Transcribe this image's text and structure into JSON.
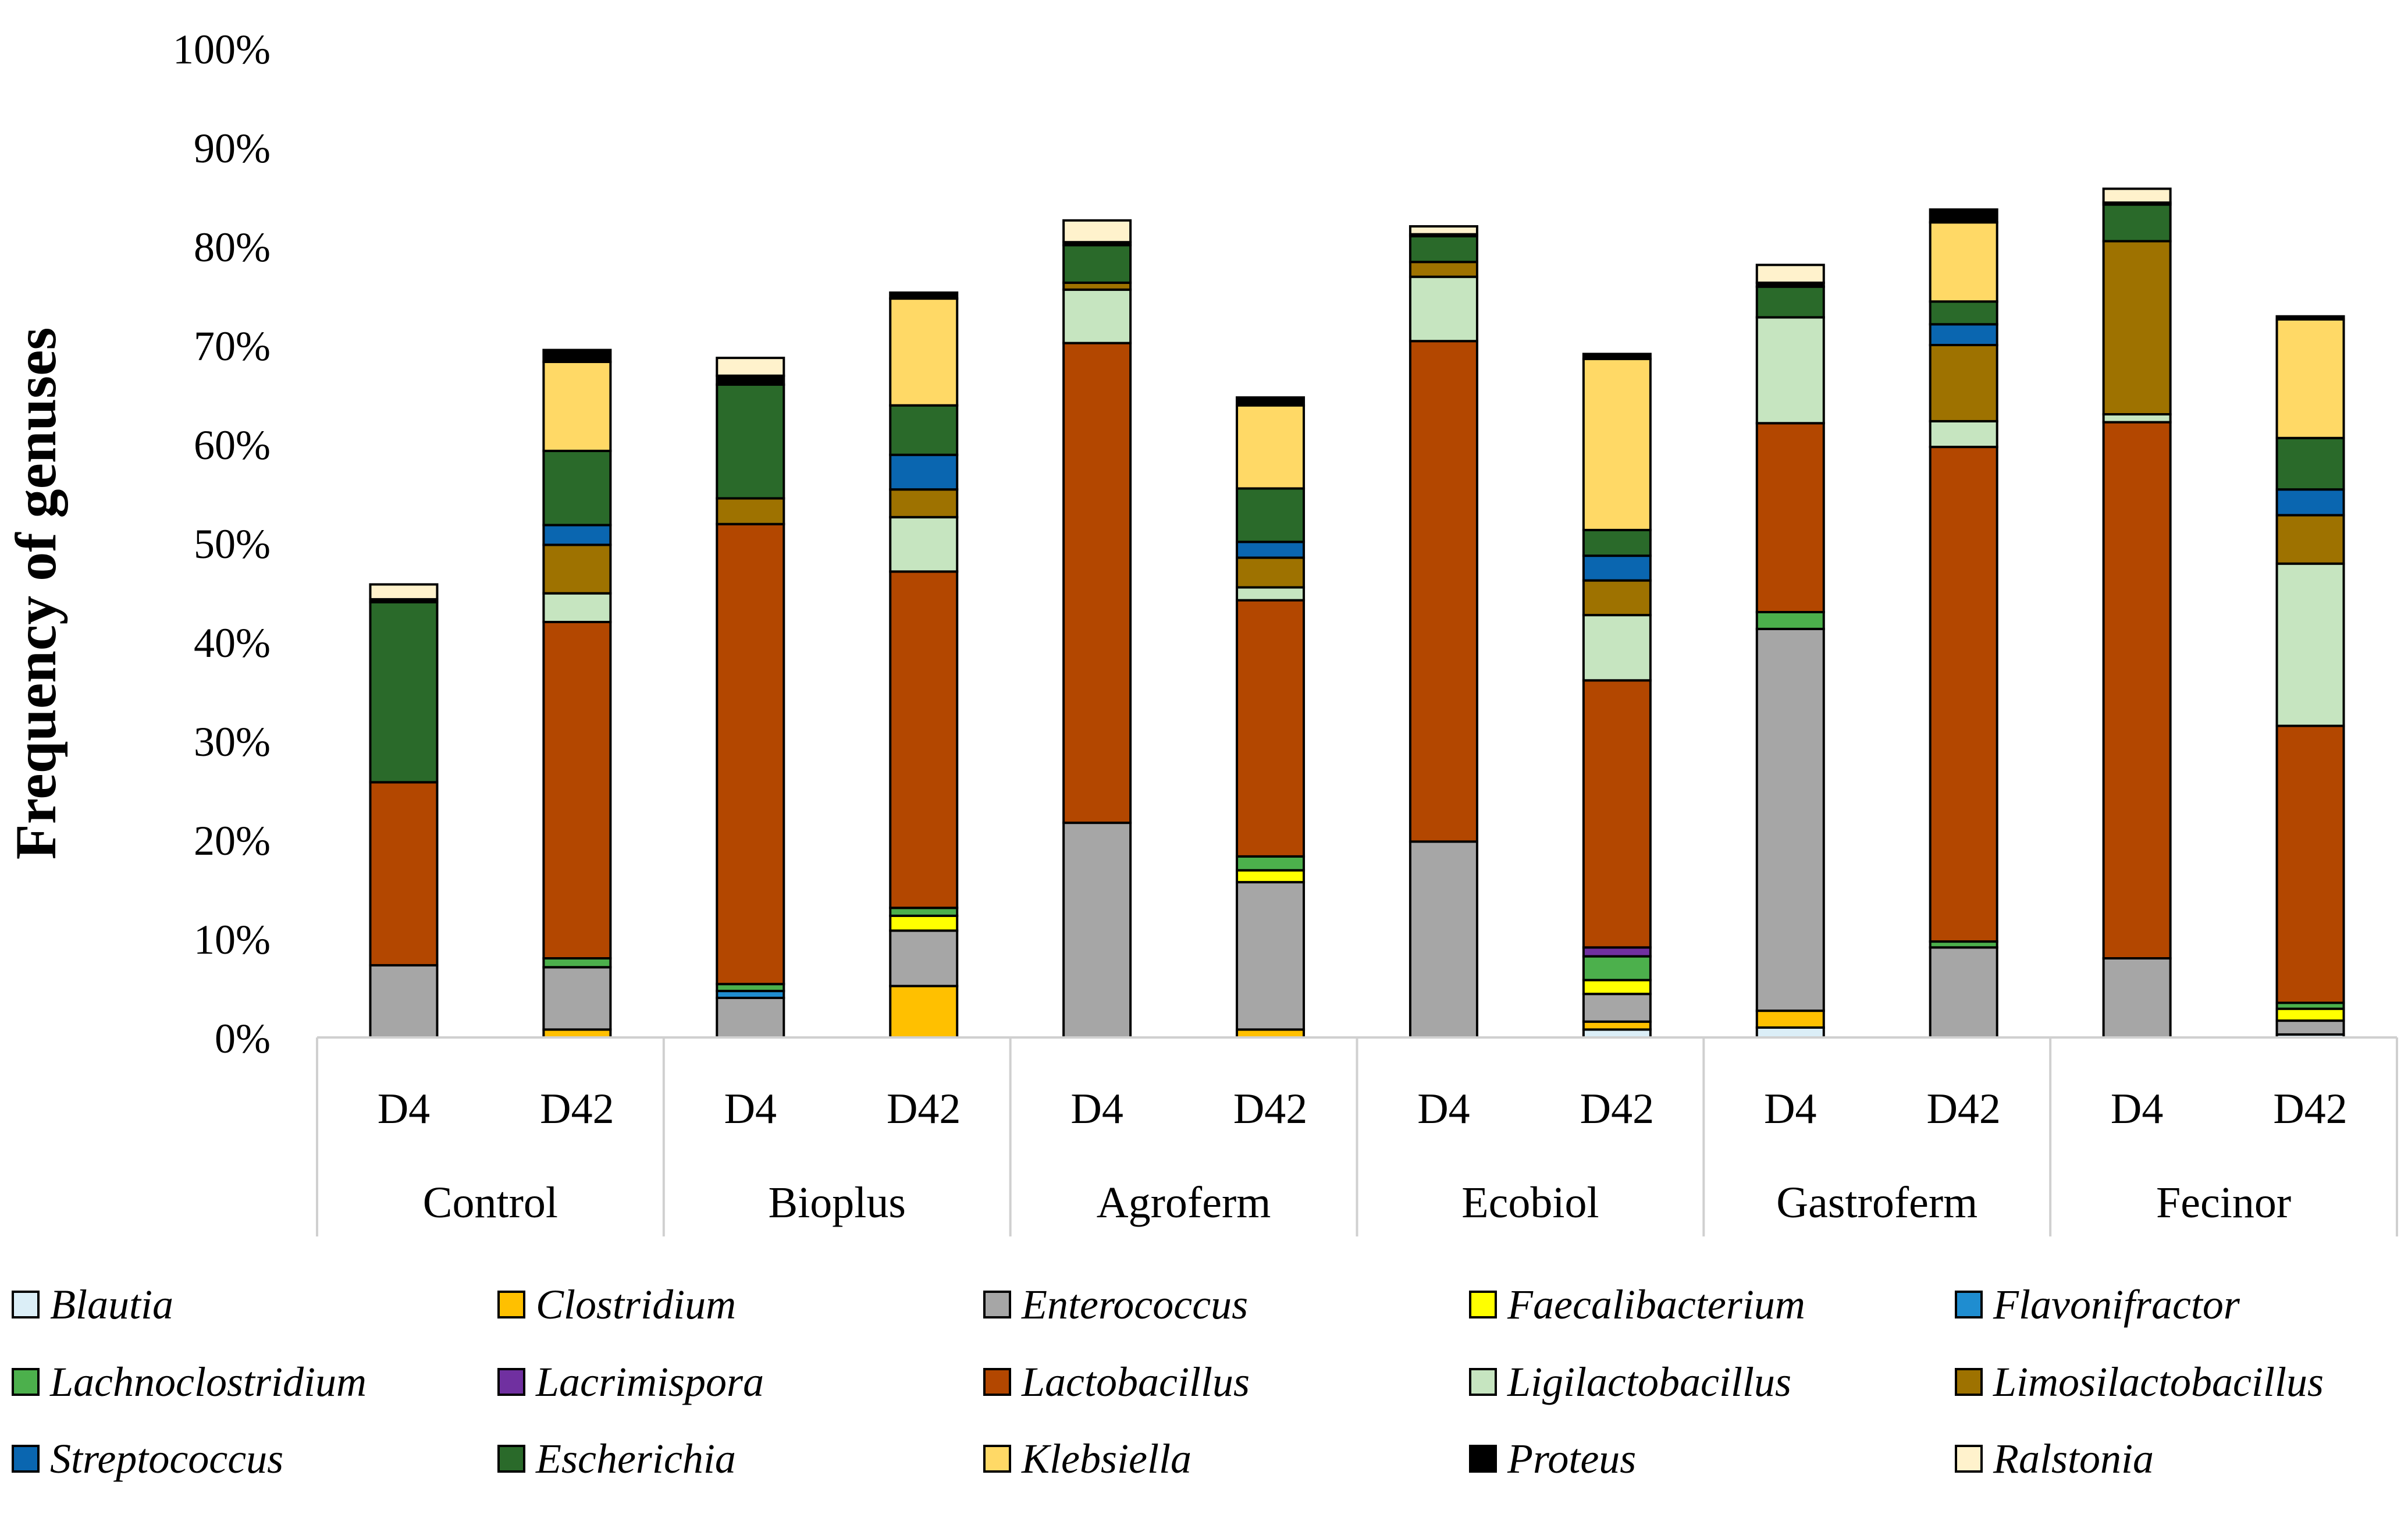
{
  "chart_data": {
    "type": "bar",
    "stacked": true,
    "ylabel": "Frequency of genuses",
    "ylim": [
      0,
      100
    ],
    "y_ticks": [
      "0%",
      "10%",
      "20%",
      "30%",
      "40%",
      "50%",
      "60%",
      "70%",
      "80%",
      "90%",
      "100%"
    ],
    "groups": [
      "Control",
      "Bioplus",
      "Agroferm",
      "Ecobiol",
      "Gastroferm",
      "Fecinor"
    ],
    "categories": [
      "D4",
      "D42",
      "D4",
      "D42",
      "D4",
      "D42",
      "D4",
      "D42",
      "D4",
      "D42",
      "D4",
      "D42"
    ],
    "series": [
      {
        "name": "Blautia",
        "color": "#dbeef7",
        "values": [
          0,
          0,
          0,
          0,
          0,
          0,
          0,
          0.8,
          1.0,
          0,
          0,
          0.3
        ]
      },
      {
        "name": "Clostridium",
        "color": "#ffc000",
        "values": [
          0,
          0.8,
          0,
          5.2,
          0,
          0.8,
          0,
          0.8,
          1.7,
          0,
          0,
          0
        ]
      },
      {
        "name": "Enterococcus",
        "color": "#a6a6a6",
        "values": [
          7.3,
          6.3,
          4.0,
          5.6,
          21.7,
          14.9,
          19.8,
          2.8,
          38.6,
          9.1,
          8.0,
          1.4
        ]
      },
      {
        "name": "Faecalibacterium",
        "color": "#ffff00",
        "values": [
          0,
          0,
          0,
          1.5,
          0,
          1.2,
          0,
          1.4,
          0,
          0,
          0,
          1.2
        ]
      },
      {
        "name": "Flavonifractor",
        "color": "#1f8dd0",
        "values": [
          0,
          0,
          0.7,
          0,
          0,
          0,
          0,
          0,
          0,
          0,
          0,
          0
        ]
      },
      {
        "name": "Lachnoclostridium",
        "color": "#4cb04c",
        "values": [
          0,
          0.9,
          0.7,
          0.8,
          0,
          1.4,
          0,
          2.4,
          1.7,
          0.6,
          0,
          0.6
        ]
      },
      {
        "name": "Lacrimispora",
        "color": "#7030a0",
        "values": [
          0,
          0,
          0,
          0,
          0,
          0,
          0,
          0.9,
          0,
          0,
          0,
          0
        ]
      },
      {
        "name": "Lactobacillus",
        "color": "#b34700",
        "values": [
          18.5,
          34.0,
          46.5,
          34.0,
          48.5,
          25.9,
          50.6,
          27.0,
          19.1,
          50.0,
          54.2,
          28.0
        ]
      },
      {
        "name": "Ligilactobacillus",
        "color": "#c6e5c0",
        "values": [
          0,
          2.9,
          0,
          5.5,
          5.4,
          1.3,
          6.5,
          6.6,
          10.7,
          2.6,
          0.8,
          16.4
        ]
      },
      {
        "name": "Limosilactobacillus",
        "color": "#9e7200",
        "values": [
          0,
          4.9,
          2.6,
          2.8,
          0.7,
          3.0,
          1.5,
          3.5,
          0,
          7.7,
          17.5,
          4.9
        ]
      },
      {
        "name": "Streptococcus",
        "color": "#0a66b0",
        "values": [
          0,
          2.0,
          0,
          3.5,
          0,
          1.6,
          0,
          2.5,
          0,
          2.1,
          0,
          2.6
        ]
      },
      {
        "name": "Escherichia",
        "color": "#2a6a2a",
        "values": [
          18.2,
          7.5,
          11.5,
          5.0,
          3.8,
          5.4,
          2.6,
          2.6,
          3.1,
          2.3,
          3.7,
          5.2
        ]
      },
      {
        "name": "Klebsiella",
        "color": "#ffd966",
        "values": [
          0,
          9.0,
          0,
          10.8,
          0,
          8.4,
          0,
          17.3,
          0,
          8.0,
          0,
          12.0
        ]
      },
      {
        "name": "Proteus",
        "color": "#000000",
        "values": [
          0.3,
          1.2,
          0.9,
          0.6,
          0.3,
          0.8,
          0.2,
          0.5,
          0.4,
          1.3,
          0.2,
          0.3
        ]
      },
      {
        "name": "Ralstonia",
        "color": "#fff2cc",
        "values": [
          1.5,
          0,
          1.8,
          0,
          2.2,
          0,
          0.8,
          0,
          1.8,
          0,
          1.4,
          0
        ]
      }
    ]
  }
}
